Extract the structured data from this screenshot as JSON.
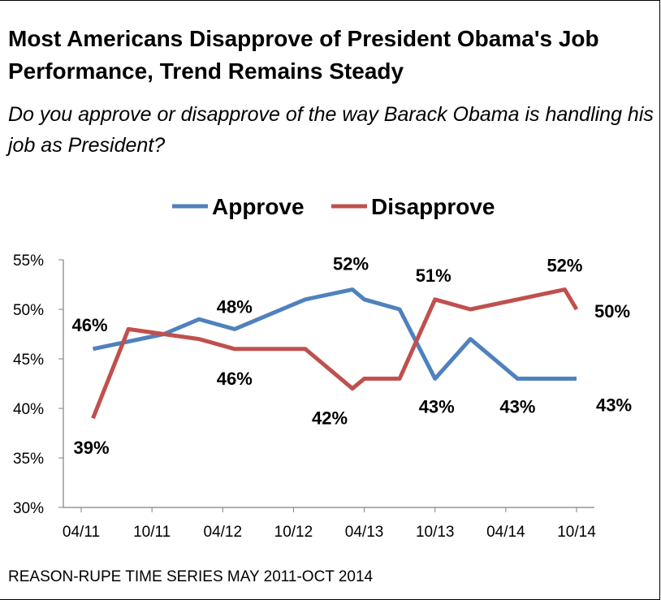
{
  "title": "Most Americans Disapprove of President Obama's Job Performance, Trend Remains Steady",
  "subtitle": "Do you approve or disapprove of the way Barack Obama is handling his job as President?",
  "source": "REASON-RUPE TIME SERIES MAY 2011-OCT 2014",
  "chart_data": {
    "type": "line",
    "title": "Most Americans Disapprove of President Obama's Job Performance, Trend Remains Steady",
    "xlabel": "",
    "ylabel": "",
    "x_ticks": [
      "04/11",
      "10/11",
      "04/12",
      "10/12",
      "04/13",
      "10/13",
      "04/14",
      "10/14"
    ],
    "y_ticks": [
      "30%",
      "35%",
      "40%",
      "45%",
      "50%",
      "55%"
    ],
    "ylim": [
      30,
      55
    ],
    "xlim": [
      "2011-04",
      "2014-10"
    ],
    "grid": false,
    "legend": "top-center",
    "series": [
      {
        "name": "Approve",
        "color": "#4f81bd",
        "x": [
          "2011-05",
          "2011-11",
          "2012-02",
          "2012-05",
          "2012-11",
          "2013-03",
          "2013-04",
          "2013-07",
          "2013-10",
          "2014-01",
          "2014-05",
          "2014-10"
        ],
        "values": [
          46,
          47.5,
          49,
          48,
          51,
          52,
          51,
          50,
          43,
          47,
          43,
          43
        ]
      },
      {
        "name": "Disapprove",
        "color": "#c0504d",
        "x": [
          "2011-05",
          "2011-08",
          "2012-02",
          "2012-05",
          "2012-11",
          "2013-03",
          "2013-04",
          "2013-07",
          "2013-10",
          "2014-01",
          "2014-05",
          "2014-09",
          "2014-10"
        ],
        "values": [
          39,
          48,
          47,
          46,
          46,
          42,
          43,
          43,
          51,
          50,
          51,
          52,
          50
        ]
      }
    ],
    "data_labels": [
      {
        "series": "Approve",
        "x": "2011-05",
        "text": "46%"
      },
      {
        "series": "Approve",
        "x": "2012-05",
        "text": "48%"
      },
      {
        "series": "Approve",
        "x": "2013-03",
        "text": "52%"
      },
      {
        "series": "Approve",
        "x": "2013-10",
        "text": "43%"
      },
      {
        "series": "Approve",
        "x": "2014-05",
        "text": "43%"
      },
      {
        "series": "Approve",
        "x": "2014-10",
        "text": "43%"
      },
      {
        "series": "Disapprove",
        "x": "2011-05",
        "text": "39%"
      },
      {
        "series": "Disapprove",
        "x": "2012-05",
        "text": "46%"
      },
      {
        "series": "Disapprove",
        "x": "2013-03",
        "text": "42%"
      },
      {
        "series": "Disapprove",
        "x": "2013-10",
        "text": "51%"
      },
      {
        "series": "Disapprove",
        "x": "2014-09",
        "text": "52%"
      },
      {
        "series": "Disapprove",
        "x": "2014-10",
        "text": "50%"
      }
    ]
  }
}
